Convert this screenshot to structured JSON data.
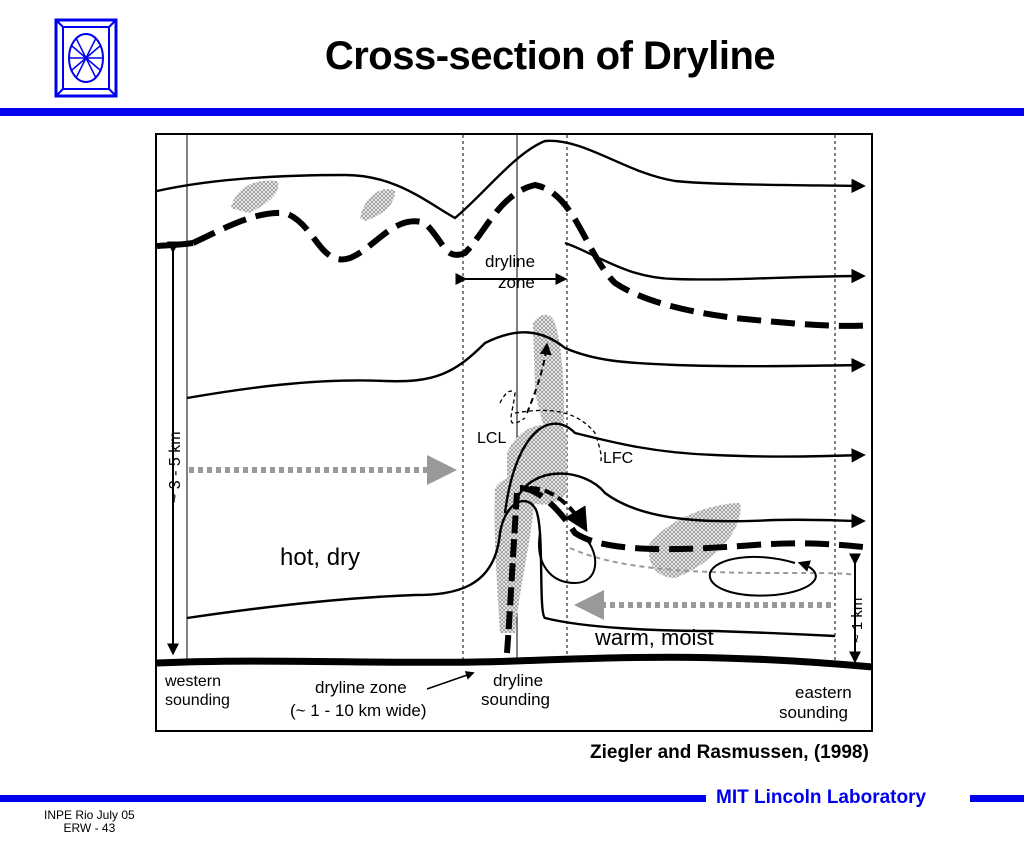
{
  "title": "Cross-section of Dryline",
  "citation": "Ziegler and Rasmussen, (1998)",
  "lab_name": "MIT Lincoln Laboratory",
  "footer": {
    "line1": "INPE Rio  July 05",
    "line2": "ERW - 43"
  },
  "figure": {
    "labels": {
      "dryline_zone_top_1": "dryline",
      "dryline_zone_top_2": "zone",
      "lcl": "LCL",
      "lfc": "LFC",
      "hot_dry": "hot, dry",
      "warm_moist": "warm, moist",
      "height_left": "~ 3 - 5 km",
      "height_right": "~ 1 km",
      "western_1": "western",
      "western_2": "sounding",
      "dryline_zone_bottom_1": "dryline zone",
      "dryline_zone_bottom_2": "(~ 1 - 10 km wide)",
      "dryline_sounding_1": "dryline",
      "dryline_sounding_2": "sounding",
      "eastern_1": "eastern",
      "eastern_2": "sounding"
    }
  },
  "colors": {
    "accent": "#0000ee",
    "cloud": "#b8b8b8"
  }
}
